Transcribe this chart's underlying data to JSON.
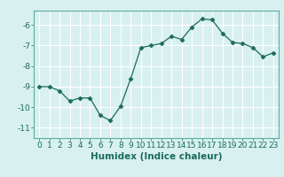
{
  "x": [
    0,
    1,
    2,
    3,
    4,
    5,
    6,
    7,
    8,
    9,
    10,
    11,
    12,
    13,
    14,
    15,
    16,
    17,
    18,
    19,
    20,
    21,
    22,
    23
  ],
  "y": [
    -9.0,
    -9.0,
    -9.2,
    -9.7,
    -9.55,
    -9.55,
    -10.4,
    -10.65,
    -9.95,
    -8.6,
    -7.1,
    -7.0,
    -6.9,
    -6.55,
    -6.7,
    -6.1,
    -5.7,
    -5.75,
    -6.4,
    -6.85,
    -6.9,
    -7.1,
    -7.55,
    -7.35
  ],
  "line_color": "#1a6b5a",
  "marker": "D",
  "marker_size": 2.5,
  "bg_color": "#d8f0f0",
  "grid_color": "#ffffff",
  "xlabel": "Humidex (Indice chaleur)",
  "xlim": [
    -0.5,
    23.5
  ],
  "ylim": [
    -11.5,
    -5.3
  ],
  "yticks": [
    -11,
    -10,
    -9,
    -8,
    -7,
    -6
  ],
  "xticks": [
    0,
    1,
    2,
    3,
    4,
    5,
    6,
    7,
    8,
    9,
    10,
    11,
    12,
    13,
    14,
    15,
    16,
    17,
    18,
    19,
    20,
    21,
    22,
    23
  ],
  "tick_fontsize": 6.5,
  "xlabel_fontsize": 7.5
}
